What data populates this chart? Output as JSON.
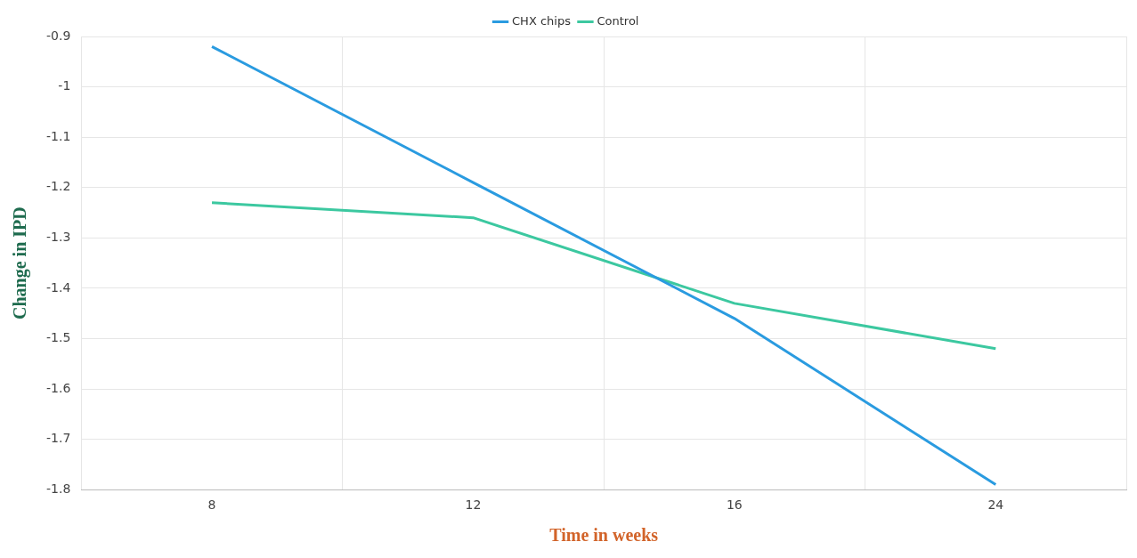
{
  "chart_data": {
    "type": "line",
    "xlabel": "Time in weeks",
    "ylabel": "Change in IPD",
    "categories": [
      "8",
      "12",
      "16",
      "24"
    ],
    "series": [
      {
        "name": "CHX chips",
        "color": "#2a9be0",
        "values": [
          -0.92,
          -1.19,
          -1.46,
          -1.79
        ]
      },
      {
        "name": "Control",
        "color": "#3cc8a0",
        "values": [
          -1.23,
          -1.26,
          -1.43,
          -1.52
        ]
      }
    ],
    "ylim": [
      -1.8,
      -0.9
    ],
    "yticks": [
      -1.8,
      -1.7,
      -1.6,
      -1.5,
      -1.4,
      -1.3,
      -1.2,
      -1.1,
      -1,
      -0.9
    ],
    "grid": true,
    "legend": "top",
    "marker": "none",
    "line_style": "solid"
  }
}
